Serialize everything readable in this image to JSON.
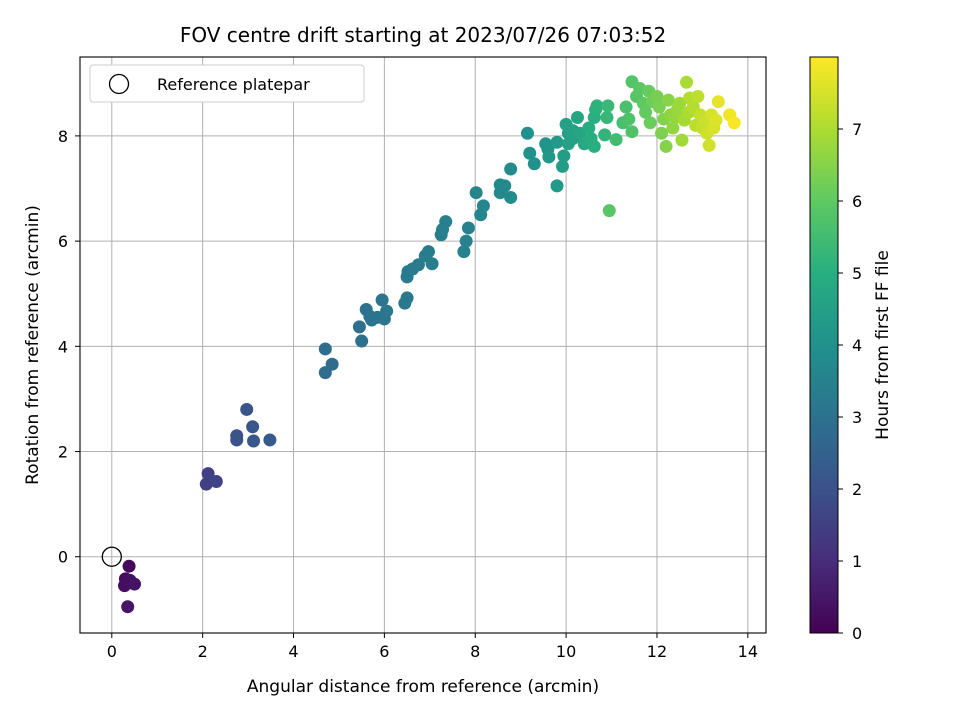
{
  "chart_data": {
    "type": "scatter",
    "title": "FOV centre drift starting at 2023/07/26 07:03:52",
    "xlabel": "Angular distance from reference (arcmin)",
    "ylabel": "Rotation from reference (arcmin)",
    "xlim": [
      -0.7,
      14.4
    ],
    "ylim": [
      -1.45,
      9.5
    ],
    "xticks": [
      0,
      2,
      4,
      6,
      8,
      10,
      12,
      14
    ],
    "yticks": [
      0,
      2,
      4,
      6,
      8
    ],
    "grid": true,
    "colormap": "viridis",
    "colorbar": {
      "label": "Hours from first FF file",
      "range": [
        0,
        8
      ],
      "ticks": [
        0,
        1,
        2,
        3,
        4,
        5,
        6,
        7
      ]
    },
    "legend": {
      "entries": [
        "Reference platepar"
      ],
      "placement": "top-left"
    },
    "reference_point": {
      "x": 0,
      "y": 0
    },
    "points": [
      {
        "x": 0.38,
        "y": -0.18,
        "t": 0.2
      },
      {
        "x": 0.3,
        "y": -0.42,
        "t": 0.25
      },
      {
        "x": 0.28,
        "y": -0.55,
        "t": 0.3
      },
      {
        "x": 0.4,
        "y": -0.45,
        "t": 0.35
      },
      {
        "x": 0.5,
        "y": -0.52,
        "t": 0.4
      },
      {
        "x": 0.35,
        "y": -0.95,
        "t": 0.45
      },
      {
        "x": 2.08,
        "y": 1.38,
        "t": 1.5
      },
      {
        "x": 2.12,
        "y": 1.58,
        "t": 1.55
      },
      {
        "x": 2.3,
        "y": 1.43,
        "t": 1.6
      },
      {
        "x": 2.75,
        "y": 2.3,
        "t": 2.0
      },
      {
        "x": 2.75,
        "y": 2.22,
        "t": 2.05
      },
      {
        "x": 2.97,
        "y": 2.8,
        "t": 2.1
      },
      {
        "x": 3.1,
        "y": 2.47,
        "t": 2.15
      },
      {
        "x": 3.12,
        "y": 2.2,
        "t": 2.2
      },
      {
        "x": 3.48,
        "y": 2.22,
        "t": 2.25
      },
      {
        "x": 4.7,
        "y": 3.95,
        "t": 2.8
      },
      {
        "x": 4.7,
        "y": 3.5,
        "t": 2.8
      },
      {
        "x": 4.85,
        "y": 3.66,
        "t": 2.85
      },
      {
        "x": 5.45,
        "y": 4.37,
        "t": 2.9
      },
      {
        "x": 5.5,
        "y": 4.1,
        "t": 2.95
      },
      {
        "x": 5.6,
        "y": 4.7,
        "t": 3.0
      },
      {
        "x": 5.68,
        "y": 4.57,
        "t": 3.0
      },
      {
        "x": 5.72,
        "y": 4.5,
        "t": 3.05
      },
      {
        "x": 5.85,
        "y": 4.55,
        "t": 3.05
      },
      {
        "x": 5.95,
        "y": 4.88,
        "t": 3.1
      },
      {
        "x": 6.0,
        "y": 4.52,
        "t": 3.1
      },
      {
        "x": 6.05,
        "y": 4.67,
        "t": 3.15
      },
      {
        "x": 6.45,
        "y": 4.82,
        "t": 3.2
      },
      {
        "x": 6.5,
        "y": 4.92,
        "t": 3.2
      },
      {
        "x": 6.5,
        "y": 5.32,
        "t": 3.25
      },
      {
        "x": 6.52,
        "y": 5.42,
        "t": 3.25
      },
      {
        "x": 6.62,
        "y": 5.47,
        "t": 3.3
      },
      {
        "x": 6.75,
        "y": 5.55,
        "t": 3.3
      },
      {
        "x": 6.9,
        "y": 5.72,
        "t": 3.35
      },
      {
        "x": 6.97,
        "y": 5.8,
        "t": 3.35
      },
      {
        "x": 7.05,
        "y": 5.57,
        "t": 3.4
      },
      {
        "x": 7.25,
        "y": 6.12,
        "t": 3.4
      },
      {
        "x": 7.28,
        "y": 6.22,
        "t": 3.45
      },
      {
        "x": 7.35,
        "y": 6.37,
        "t": 3.45
      },
      {
        "x": 7.75,
        "y": 5.8,
        "t": 3.5
      },
      {
        "x": 7.8,
        "y": 6.0,
        "t": 3.5
      },
      {
        "x": 7.85,
        "y": 6.25,
        "t": 3.55
      },
      {
        "x": 8.02,
        "y": 6.92,
        "t": 3.6
      },
      {
        "x": 8.12,
        "y": 6.5,
        "t": 3.6
      },
      {
        "x": 8.18,
        "y": 6.67,
        "t": 3.65
      },
      {
        "x": 8.55,
        "y": 7.07,
        "t": 3.7
      },
      {
        "x": 8.55,
        "y": 6.92,
        "t": 3.7
      },
      {
        "x": 8.65,
        "y": 7.05,
        "t": 3.75
      },
      {
        "x": 8.78,
        "y": 7.37,
        "t": 3.8
      },
      {
        "x": 8.78,
        "y": 6.83,
        "t": 3.8
      },
      {
        "x": 9.15,
        "y": 8.05,
        "t": 4.0
      },
      {
        "x": 9.2,
        "y": 7.67,
        "t": 4.0
      },
      {
        "x": 9.3,
        "y": 7.47,
        "t": 4.05
      },
      {
        "x": 9.55,
        "y": 7.85,
        "t": 4.1
      },
      {
        "x": 9.6,
        "y": 7.75,
        "t": 4.15
      },
      {
        "x": 9.62,
        "y": 7.6,
        "t": 4.2
      },
      {
        "x": 9.8,
        "y": 7.88,
        "t": 4.3
      },
      {
        "x": 9.8,
        "y": 7.05,
        "t": 4.3
      },
      {
        "x": 9.92,
        "y": 7.42,
        "t": 4.4
      },
      {
        "x": 9.95,
        "y": 7.62,
        "t": 4.4
      },
      {
        "x": 10.0,
        "y": 8.22,
        "t": 4.5
      },
      {
        "x": 10.05,
        "y": 8.05,
        "t": 4.5
      },
      {
        "x": 10.05,
        "y": 7.85,
        "t": 4.55
      },
      {
        "x": 10.15,
        "y": 8.1,
        "t": 4.6
      },
      {
        "x": 10.15,
        "y": 7.95,
        "t": 4.6
      },
      {
        "x": 10.25,
        "y": 8.35,
        "t": 4.7
      },
      {
        "x": 10.3,
        "y": 8.05,
        "t": 4.7
      },
      {
        "x": 10.4,
        "y": 7.85,
        "t": 4.8
      },
      {
        "x": 10.48,
        "y": 7.9,
        "t": 4.85
      },
      {
        "x": 10.5,
        "y": 8.15,
        "t": 4.9
      },
      {
        "x": 10.55,
        "y": 7.95,
        "t": 4.95
      },
      {
        "x": 10.62,
        "y": 8.35,
        "t": 5.0
      },
      {
        "x": 10.62,
        "y": 7.8,
        "t": 5.0
      },
      {
        "x": 10.65,
        "y": 8.5,
        "t": 5.05
      },
      {
        "x": 10.68,
        "y": 8.57,
        "t": 5.1
      },
      {
        "x": 10.85,
        "y": 8.02,
        "t": 5.2
      },
      {
        "x": 10.9,
        "y": 8.35,
        "t": 5.3
      },
      {
        "x": 10.92,
        "y": 8.57,
        "t": 5.35
      },
      {
        "x": 10.95,
        "y": 6.58,
        "t": 5.9
      },
      {
        "x": 11.1,
        "y": 7.93,
        "t": 5.5
      },
      {
        "x": 11.25,
        "y": 8.25,
        "t": 5.6
      },
      {
        "x": 11.32,
        "y": 8.55,
        "t": 5.65
      },
      {
        "x": 11.38,
        "y": 8.32,
        "t": 5.7
      },
      {
        "x": 11.45,
        "y": 8.08,
        "t": 5.75
      },
      {
        "x": 11.45,
        "y": 9.03,
        "t": 5.8
      },
      {
        "x": 11.55,
        "y": 8.75,
        "t": 5.85
      },
      {
        "x": 11.62,
        "y": 8.9,
        "t": 5.9
      },
      {
        "x": 11.7,
        "y": 8.62,
        "t": 6.0
      },
      {
        "x": 11.75,
        "y": 8.45,
        "t": 6.05
      },
      {
        "x": 11.82,
        "y": 8.85,
        "t": 6.1
      },
      {
        "x": 11.85,
        "y": 8.25,
        "t": 6.15
      },
      {
        "x": 11.9,
        "y": 8.65,
        "t": 6.2
      },
      {
        "x": 12.0,
        "y": 8.75,
        "t": 6.3
      },
      {
        "x": 12.05,
        "y": 8.55,
        "t": 6.35
      },
      {
        "x": 12.1,
        "y": 8.05,
        "t": 6.4
      },
      {
        "x": 12.15,
        "y": 8.32,
        "t": 6.45
      },
      {
        "x": 12.2,
        "y": 7.8,
        "t": 6.5
      },
      {
        "x": 12.25,
        "y": 8.68,
        "t": 6.55
      },
      {
        "x": 12.3,
        "y": 8.4,
        "t": 6.6
      },
      {
        "x": 12.35,
        "y": 8.15,
        "t": 6.65
      },
      {
        "x": 12.4,
        "y": 8.35,
        "t": 6.7
      },
      {
        "x": 12.45,
        "y": 8.5,
        "t": 6.75
      },
      {
        "x": 12.5,
        "y": 8.62,
        "t": 6.8
      },
      {
        "x": 12.55,
        "y": 7.92,
        "t": 6.85
      },
      {
        "x": 12.6,
        "y": 8.3,
        "t": 6.9
      },
      {
        "x": 12.65,
        "y": 9.02,
        "t": 6.95
      },
      {
        "x": 12.7,
        "y": 8.45,
        "t": 7.0
      },
      {
        "x": 12.72,
        "y": 8.72,
        "t": 7.05
      },
      {
        "x": 12.8,
        "y": 8.55,
        "t": 7.1
      },
      {
        "x": 12.85,
        "y": 8.2,
        "t": 7.15
      },
      {
        "x": 12.9,
        "y": 8.75,
        "t": 7.2
      },
      {
        "x": 12.95,
        "y": 8.4,
        "t": 7.25
      },
      {
        "x": 13.0,
        "y": 8.15,
        "t": 7.3
      },
      {
        "x": 13.05,
        "y": 8.3,
        "t": 7.35
      },
      {
        "x": 13.1,
        "y": 8.05,
        "t": 7.4
      },
      {
        "x": 13.15,
        "y": 7.82,
        "t": 7.45
      },
      {
        "x": 13.2,
        "y": 8.4,
        "t": 7.5
      },
      {
        "x": 13.25,
        "y": 8.15,
        "t": 7.55
      },
      {
        "x": 13.3,
        "y": 8.3,
        "t": 7.6
      },
      {
        "x": 13.35,
        "y": 8.65,
        "t": 7.7
      },
      {
        "x": 13.6,
        "y": 8.4,
        "t": 7.85
      },
      {
        "x": 13.7,
        "y": 8.25,
        "t": 7.95
      }
    ]
  }
}
